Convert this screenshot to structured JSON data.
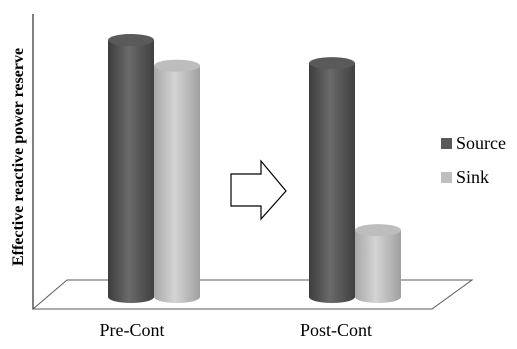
{
  "chart_data": {
    "type": "bar",
    "style": "3d-cylinder",
    "title": "",
    "xlabel": "",
    "ylabel": "Effective reactive power reserve",
    "categories": [
      "Pre-Cont",
      "Post-Cont"
    ],
    "series": [
      {
        "name": "Source",
        "values": [
          100,
          91
        ],
        "color": "#595959"
      },
      {
        "name": "Sink",
        "values": [
          90,
          26
        ],
        "color": "#bfbfbf"
      }
    ],
    "ylim": [
      0,
      100
    ],
    "grid": false,
    "legend": "right",
    "annotations": [
      {
        "type": "arrow-right",
        "between": [
          "Pre-Cont",
          "Post-Cont"
        ]
      }
    ]
  }
}
